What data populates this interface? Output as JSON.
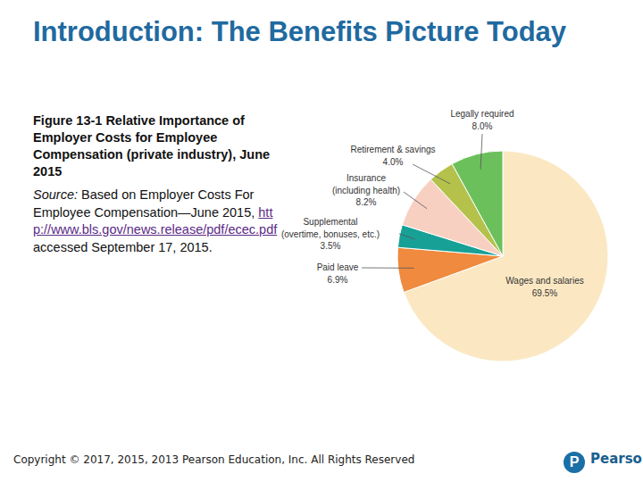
{
  "slide": {
    "title": "Introduction: The Benefits Picture Today",
    "source_label": "Source:",
    "source_text": "Based on Employer Costs For Employee Compensation—June 2015,",
    "source_url": "http://www.bls.gov/news.release/pdf/ecec.pdf",
    "source_accessed": "accessed September 17, 2015.",
    "copyright": "Copyright © 2017, 2015, 2013 Pearson Education, Inc. All Rights Reserved",
    "logo_mark": "P",
    "logo_text": "Pearson"
  },
  "chart_data": {
    "type": "pie",
    "title": "Figure 13-1 Relative Importance of Employer Costs for Employee Compensation (private industry), June 2015",
    "categories": [
      "Wages and salaries",
      "Paid leave",
      "Supplemental (overtime, bonuses, etc.)",
      "Insurance (including health)",
      "Retirement & savings",
      "Legally required"
    ],
    "values": [
      69.5,
      6.9,
      3.5,
      8.2,
      4.0,
      8.0
    ],
    "value_labels": [
      "69.5%",
      "6.9%",
      "3.5%",
      "8.2%",
      "4.0%",
      "8.0%"
    ],
    "colors": [
      "#fbe8c3",
      "#ef8a3e",
      "#17a096",
      "#f8d0c2",
      "#b4c24c",
      "#6cc05c"
    ],
    "data_labels": true
  }
}
